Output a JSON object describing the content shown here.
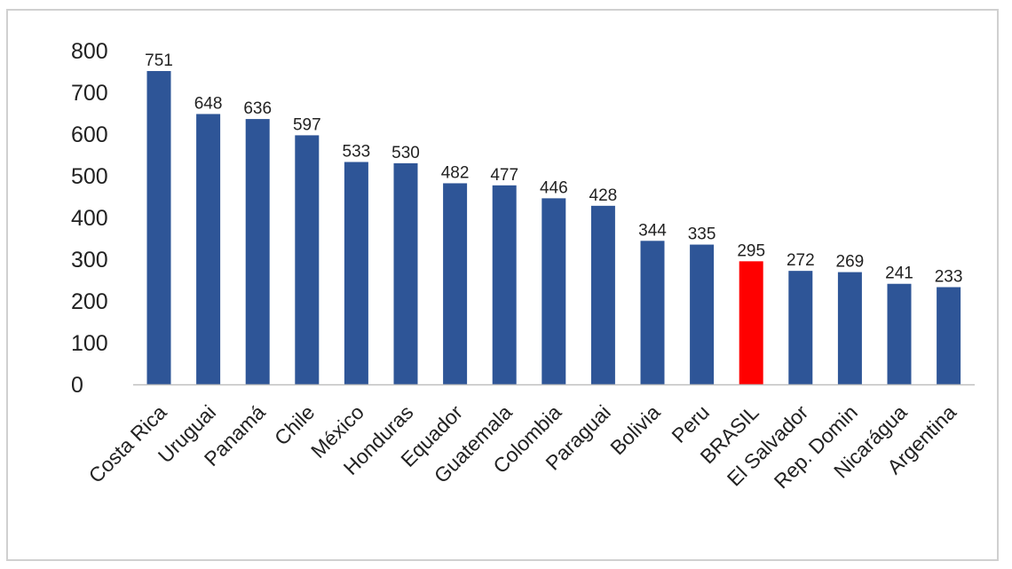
{
  "chart_data": {
    "type": "bar",
    "categories": [
      "Costa Rica",
      "Uruguai",
      "Panamá",
      "Chile",
      "México",
      "Honduras",
      "Equador",
      "Guatemala",
      "Colombia",
      "Paraguai",
      "Bolivia",
      "Peru",
      "BRASIL",
      "El Salvador",
      "Rep. Domin",
      "Nicarágua",
      "Argentina"
    ],
    "values": [
      751,
      648,
      636,
      597,
      533,
      530,
      482,
      477,
      446,
      428,
      344,
      335,
      295,
      272,
      269,
      241,
      233
    ],
    "yticks": [
      "0",
      "100",
      "200",
      "300",
      "400",
      "500",
      "600",
      "700",
      "800"
    ],
    "ylim": [
      0,
      800
    ],
    "title": "",
    "xlabel": "",
    "ylabel": "",
    "grid": false,
    "legend": "none",
    "colors": {
      "bar": "#2e5597",
      "highlight": "#ff0000",
      "highlight_category": "BRASIL",
      "axis": "#bfbfbf",
      "text": "#222222"
    }
  }
}
